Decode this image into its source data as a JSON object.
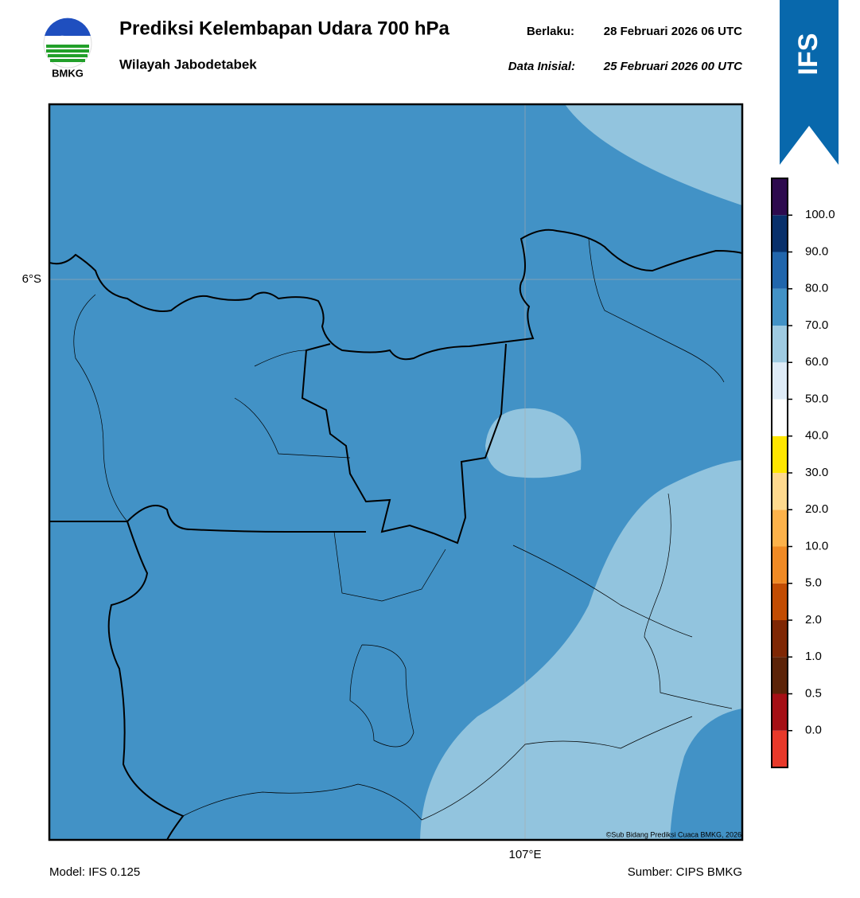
{
  "header": {
    "title": "Prediksi Kelembapan Udara 700 hPa",
    "subtitle": "Wilayah Jabodetabek",
    "valid_label": "Berlaku:",
    "valid_time": "28 Februari 2026 06 UTC",
    "init_label": "Data Inisial:",
    "init_time": "25 Februari 2026 00 UTC"
  },
  "logo": {
    "text": "BMKG"
  },
  "badge": {
    "text": "IFS"
  },
  "map": {
    "lat_label": "6°S",
    "lon_label": "107°E",
    "credit": "©Sub Bidang Prediksi Cuaca BMKG, 2026"
  },
  "colorbar": {
    "labels": [
      "0.0",
      "0.5",
      "1.0",
      "2.0",
      "5.0",
      "10.0",
      "20.0",
      "30.0",
      "40.0",
      "50.0",
      "60.0",
      "70.0",
      "80.0",
      "90.0",
      "100.0"
    ],
    "colors": [
      "#e8392a",
      "#a50f15",
      "#5c2308",
      "#7f2704",
      "#c24c02",
      "#f08a24",
      "#fdb24a",
      "#fed98e",
      "#ffe600",
      "#ffffff",
      "#deebf7",
      "#9ecae1",
      "#4292c6",
      "#2166ac",
      "#08306b",
      "#2d0a4e"
    ]
  },
  "footer": {
    "model": "Model: IFS 0.125",
    "source": "Sumber: CIPS BMKG"
  }
}
